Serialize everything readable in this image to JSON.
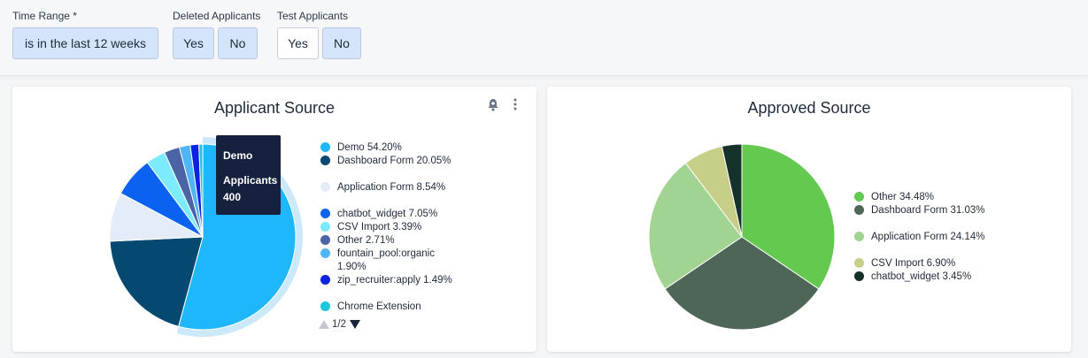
{
  "filters": {
    "time_range": {
      "label": "Time Range *",
      "value": "is in the last 12 weeks"
    },
    "deleted": {
      "label": "Deleted Applicants",
      "yes": "Yes",
      "no": "No"
    },
    "test": {
      "label": "Test Applicants",
      "yes": "Yes",
      "no": "No"
    }
  },
  "applicant_card": {
    "title": "Applicant Source",
    "tooltip": {
      "label": "Demo",
      "metric": "Applicants",
      "value": "400"
    },
    "legend": [
      {
        "label": "Demo 54.20%",
        "color": "#1fb7fb"
      },
      {
        "label": "Dashboard Form 20.05%",
        "color": "#054970"
      },
      {
        "label": "Application Form 8.54%",
        "color": "#e3ecf8"
      },
      {
        "label": "chatbot_widget 7.05%",
        "color": "#0b62f0"
      },
      {
        "label": "CSV Import 3.39%",
        "color": "#7ceaff"
      },
      {
        "label": "Other 2.71%",
        "color": "#4a64a6"
      },
      {
        "label": "fountain_pool:organic 1.90%",
        "color": "#50b5f5"
      },
      {
        "label": "zip_recruiter:apply 1.49%",
        "color": "#0c22e0"
      },
      {
        "label": "Chrome Extension",
        "color": "#1ec8da"
      }
    ],
    "pager": "1/2"
  },
  "approved_card": {
    "title": "Approved Source",
    "legend": [
      {
        "label": "Other 34.48%",
        "color": "#64c94f"
      },
      {
        "label": "Dashboard Form 31.03%",
        "color": "#4e6658"
      },
      {
        "label": "Application Form 24.14%",
        "color": "#a1d392"
      },
      {
        "label": "CSV Import 6.90%",
        "color": "#c6ce87"
      },
      {
        "label": "chatbot_widget 3.45%",
        "color": "#16302a"
      }
    ]
  },
  "chart_data": [
    {
      "type": "pie",
      "title": "Applicant Source",
      "categories": [
        "Demo",
        "Dashboard Form",
        "Application Form",
        "chatbot_widget",
        "CSV Import",
        "Other",
        "fountain_pool:organic",
        "zip_recruiter:apply",
        "Chrome Extension"
      ],
      "values": [
        54.2,
        20.05,
        8.54,
        7.05,
        3.39,
        2.71,
        1.9,
        1.49,
        0.67
      ],
      "colors": [
        "#1fb7fb",
        "#054970",
        "#e3ecf8",
        "#0b62f0",
        "#7ceaff",
        "#4a64a6",
        "#50b5f5",
        "#0c22e0",
        "#1ec8da"
      ],
      "highlighted": "Demo",
      "legend_position": "right"
    },
    {
      "type": "pie",
      "title": "Approved Source",
      "categories": [
        "Other",
        "Dashboard Form",
        "Application Form",
        "CSV Import",
        "chatbot_widget"
      ],
      "values": [
        34.48,
        31.03,
        24.14,
        6.9,
        3.45
      ],
      "colors": [
        "#64c94f",
        "#4e6658",
        "#a1d392",
        "#c6ce87",
        "#16302a"
      ],
      "legend_position": "right"
    }
  ]
}
